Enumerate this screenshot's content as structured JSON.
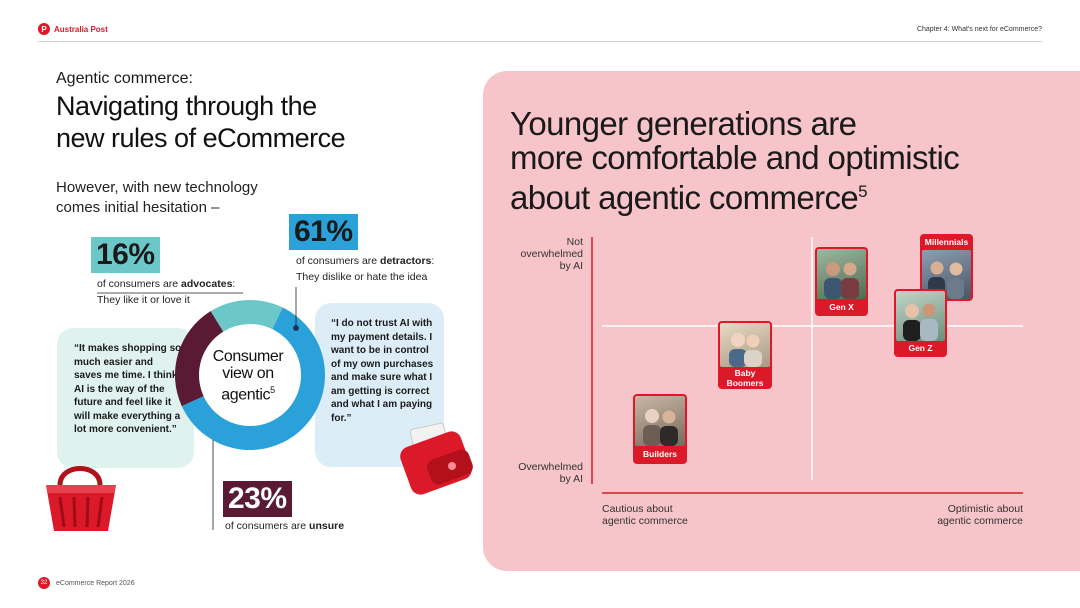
{
  "header": {
    "logo_mark": "P",
    "brand": "Australia Post",
    "chapter": "Chapter 4: What's next for eCommerce?"
  },
  "left": {
    "kicker": "Agentic commerce:",
    "headline_line1": "Navigating through the",
    "headline_line2": "new rules of eCommerce",
    "sub_line1": "However, with new technology",
    "sub_line2": "comes initial hesitation –",
    "advocates": {
      "pct": "16%",
      "pre": "of consumers are ",
      "bold": "advocates",
      "post": ":",
      "line2": "They like it or love it",
      "color": "#6cc8c8",
      "value": 16
    },
    "detractors": {
      "pct": "61%",
      "pre": "of consumers are ",
      "bold": "detractors",
      "post": ":",
      "line2": "They dislike or hate the idea",
      "color": "#2aa1d8",
      "value": 61
    },
    "unsure": {
      "pct": "23%",
      "pre": "of consumers are ",
      "bold": "unsure",
      "color": "#5b1a33",
      "value": 23
    },
    "donut_center": {
      "line1": "Consumer",
      "line2": "view on",
      "line3": "agentic",
      "sup": "5"
    },
    "quote_left": "“It makes shopping so much easier and saves me time. I think AI is the way of the future and feel like it will make everything a lot more convenient.”",
    "quote_right": "“I do not trust AI with my payment details. I want to be in control of my own purchases and make sure what I am getting is correct and what I am paying for.”"
  },
  "right": {
    "title_line1": "Younger generations are",
    "title_line2": "more comfortable and optimistic",
    "title_line3": "about agentic commerce",
    "title_sup": "5",
    "y_top_line1": "Not",
    "y_top_line2": "overwhelmed",
    "y_top_line3": "by AI",
    "y_bottom_line1": "Overwhelmed",
    "y_bottom_line2": "by AI",
    "x_left_line1": "Cautious about",
    "x_left_line2": "agentic commerce",
    "x_right_line1": "Optimistic about",
    "x_right_line2": "agentic commerce",
    "accent": "#dc1928",
    "generations": [
      {
        "label_line1": "Builders",
        "label_line2": ""
      },
      {
        "label_line1": "Baby",
        "label_line2": "Boomers"
      },
      {
        "label_line1": "Gen X",
        "label_line2": ""
      },
      {
        "label_line1": "Millennials",
        "label_line2": ""
      },
      {
        "label_line1": "Gen Z",
        "label_line2": ""
      }
    ]
  },
  "footer": {
    "page": "32",
    "report": "eCommerce Report 2026"
  }
}
